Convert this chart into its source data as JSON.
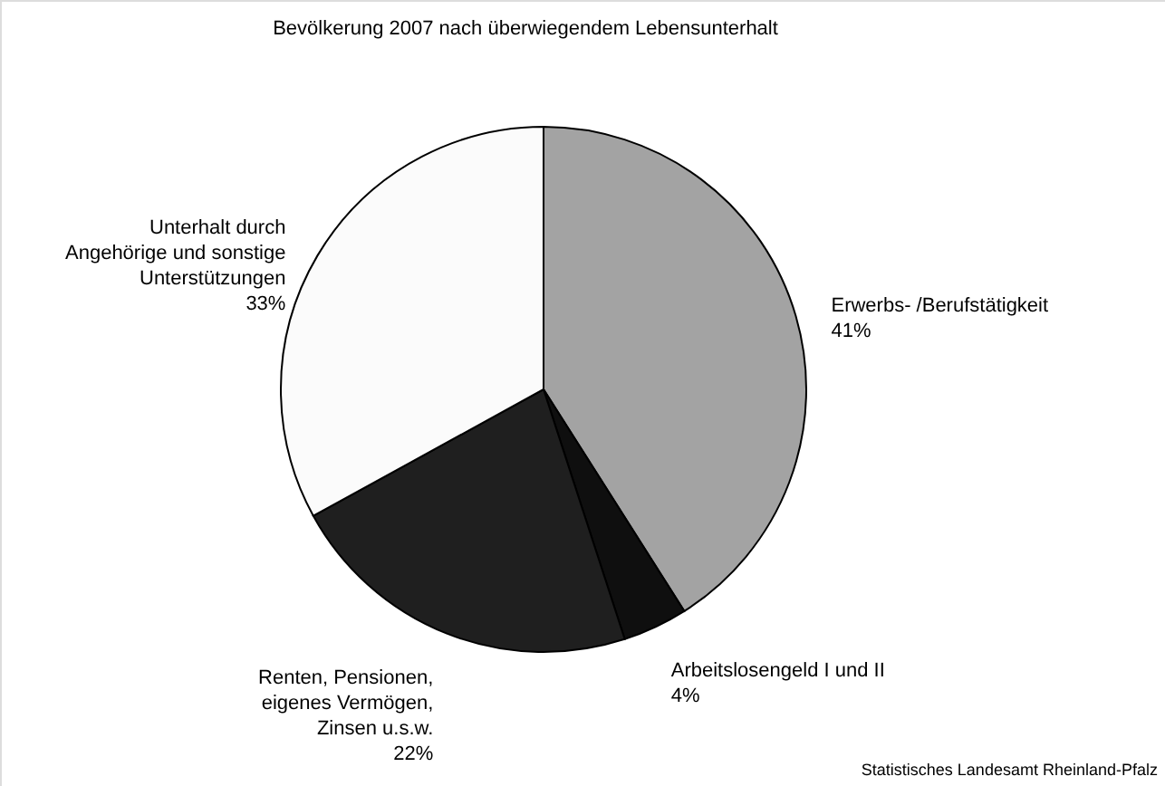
{
  "chart_data": {
    "type": "pie",
    "title": "Bevölkerung 2007 nach überwiegendem Lebensunterhalt",
    "categories": [
      "Erwerbs- /Berufstätigkeit",
      "Arbeitslosengeld I und II",
      "Renten, Pensionen,\neigenes Vermögen,\nZinsen u.s.w.",
      "Unterhalt durch\nAngehörige und sonstige\nUnterstützungen"
    ],
    "values": [
      41,
      4,
      22,
      33
    ],
    "value_labels": [
      "41%",
      "4%",
      "22%",
      "33%"
    ],
    "colors": [
      "#a3a3a3",
      "#0f0f0f",
      "#1f1f1f",
      "#fbfbfb"
    ],
    "annotations": [
      "Statistisches Landesamt Rheinland-Pfalz"
    ]
  }
}
